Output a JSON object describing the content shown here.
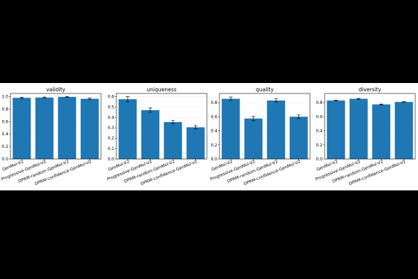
{
  "colors": {
    "bar": "#1f77b4",
    "errorbar": "#000000",
    "grid": "#b0b0b0",
    "frame": "#000000",
    "figure_bg": "#ffffff",
    "page_bg": "#000000"
  },
  "chart_data": [
    {
      "type": "bar",
      "title": "validity",
      "categories": [
        "GenMol-V2",
        "Progressive-GenMol-V2",
        "DPRM-random-GenMol-V2",
        "DPRM-confidence-GenMol-V2"
      ],
      "values": [
        0.98,
        0.985,
        0.995,
        0.965
      ],
      "errors": [
        0.01,
        0.008,
        0.005,
        0.012
      ],
      "ylim": [
        0,
        1.05
      ],
      "yticks": [
        0.0,
        0.2,
        0.4,
        0.6,
        0.8,
        1.0
      ],
      "ytick_labels": [
        "0.0",
        "0.2",
        "0.4",
        "0.6",
        "0.8",
        "1.0"
      ],
      "grid": true
    },
    {
      "type": "bar",
      "title": "uniqueness",
      "categories": [
        "GenMol-V2",
        "Progressive-GenMol-V2",
        "DPRM-random-GenMol-V2",
        "DPRM-confidence-GenMol-V2"
      ],
      "values": [
        0.575,
        0.47,
        0.355,
        0.305
      ],
      "errors": [
        0.025,
        0.02,
        0.015,
        0.015
      ],
      "ylim": [
        0,
        0.63
      ],
      "yticks": [
        0.0,
        0.1,
        0.2,
        0.3,
        0.4,
        0.5,
        0.6
      ],
      "ytick_labels": [
        "0.0",
        "0.1",
        "0.2",
        "0.3",
        "0.4",
        "0.5",
        "0.6"
      ],
      "grid": true
    },
    {
      "type": "bar",
      "title": "quality",
      "categories": [
        "GenMol-V2",
        "Progressive-GenMol-V2",
        "DPRM-random-GenMol-V2",
        "DPRM-confidence-GenMol-V2"
      ],
      "values": [
        0.855,
        0.575,
        0.83,
        0.6
      ],
      "errors": [
        0.025,
        0.03,
        0.025,
        0.025
      ],
      "ylim": [
        0,
        0.93
      ],
      "yticks": [
        0.0,
        0.2,
        0.4,
        0.6,
        0.8
      ],
      "ytick_labels": [
        "0.0",
        "0.2",
        "0.4",
        "0.6",
        "0.8"
      ],
      "grid": true
    },
    {
      "type": "bar",
      "title": "diversity",
      "categories": [
        "GenMol-V2",
        "Progressive-GenMol-V2",
        "DPRM-random-GenMol-V2",
        "DPRM-confidence-GenMol-V2"
      ],
      "values": [
        0.83,
        0.855,
        0.775,
        0.81
      ],
      "errors": [
        0.005,
        0.005,
        0.005,
        0.005
      ],
      "ylim": [
        0,
        0.93
      ],
      "yticks": [
        0.0,
        0.2,
        0.4,
        0.6,
        0.8
      ],
      "ytick_labels": [
        "0.0",
        "0.2",
        "0.4",
        "0.6",
        "0.8"
      ],
      "grid": true
    }
  ]
}
